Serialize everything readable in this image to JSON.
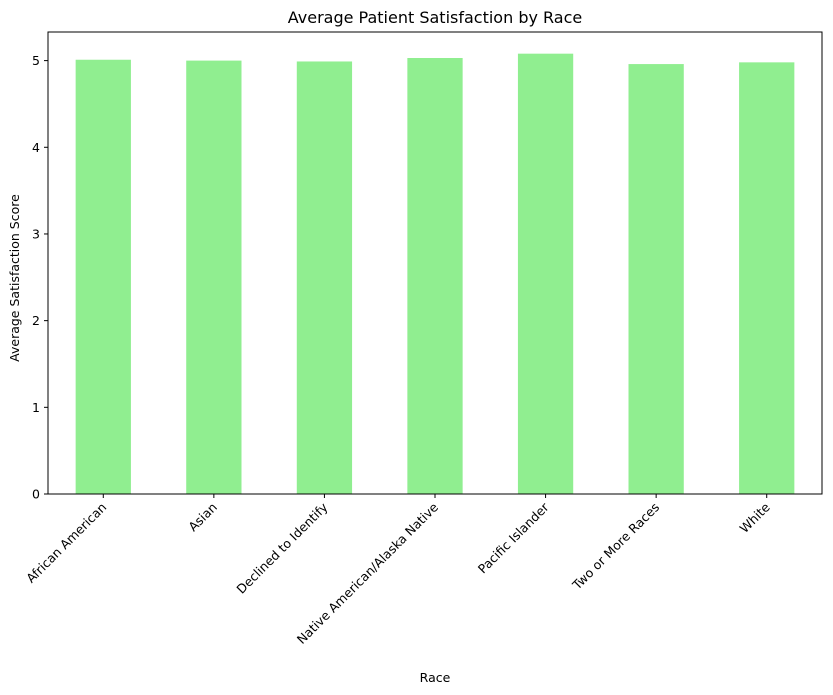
{
  "chart_data": {
    "type": "bar",
    "title": "Average Patient Satisfaction by Race",
    "xlabel": "Race",
    "ylabel": "Average Satisfaction Score",
    "categories": [
      "African American",
      "Asian",
      "Declined to Identify",
      "Native American/Alaska Native",
      "Pacific Islander",
      "Two or More Races",
      "White"
    ],
    "values": [
      5.01,
      5.0,
      4.99,
      5.03,
      5.08,
      4.96,
      4.98
    ],
    "ylim": [
      0,
      5.33
    ],
    "yticks": [
      0,
      1,
      2,
      3,
      4,
      5
    ],
    "bar_color": "#90ee90",
    "grid": false,
    "legend": "none"
  }
}
